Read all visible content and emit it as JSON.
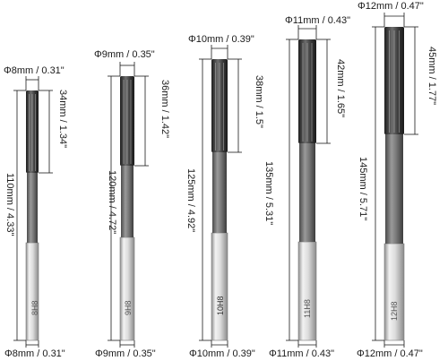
{
  "reamers": [
    {
      "top_diameter": "Φ8mm / 0.31\"",
      "flute_length": "34mm / 1.34\"",
      "total_length": "110mm / 4.33\"",
      "shank_marking": "8H8",
      "bottom_diameter": "Φ8mm / 0.31\""
    },
    {
      "top_diameter": "Φ9mm / 0.35\"",
      "flute_length": "36mm / 1.42\"",
      "total_length": "120mm / 4.72\"",
      "shank_marking": "9H8",
      "bottom_diameter": "Φ9mm / 0.35\""
    },
    {
      "top_diameter": "Φ10mm / 0.39\"",
      "flute_length": "38mm / 1.5\"",
      "total_length": "125mm / 4.92\"",
      "shank_marking": "10H8",
      "bottom_diameter": "Φ10mm / 0.39\""
    },
    {
      "top_diameter": "Φ11mm / 0.43\"",
      "flute_length": "42mm / 1.65\"",
      "total_length": "135mm / 5.31\"",
      "shank_marking": "11H8",
      "bottom_diameter": "Φ11mm / 0.43\""
    },
    {
      "top_diameter": "Φ12mm / 0.47\"",
      "flute_length": "45mm / 1.77\"",
      "total_length": "145mm / 5.71\"",
      "shank_marking": "12H8",
      "bottom_diameter": "Φ12mm / 0.47\""
    }
  ],
  "colors": {
    "flute_dark": "#2e2e2e",
    "flute_mid": "#6a6a6a",
    "shank_light": "#e4e4e4",
    "shank_shadow": "#9a9a9a",
    "dimension_line": "#1a1a1a"
  }
}
